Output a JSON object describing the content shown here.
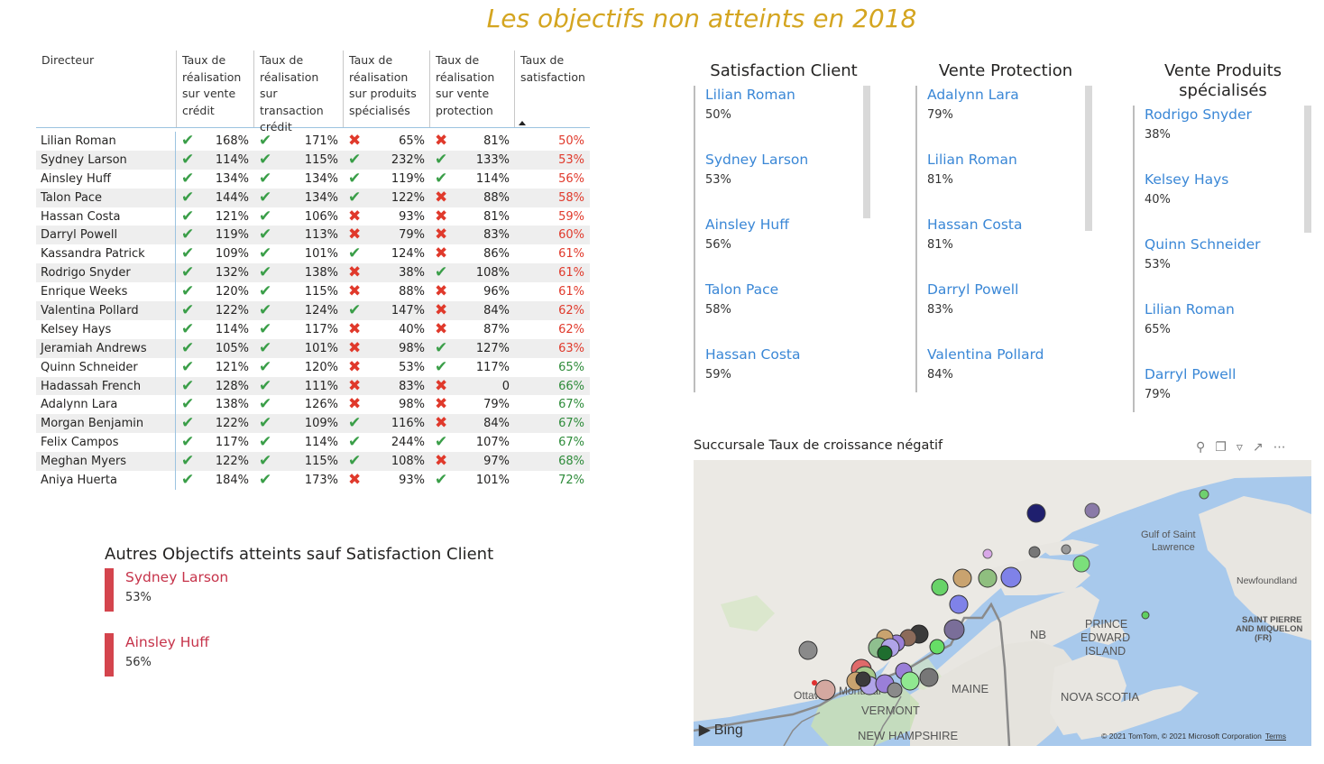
{
  "page": {
    "title": "Les objectifs non atteints en 2018"
  },
  "table": {
    "headers": {
      "directeur": "Directeur",
      "credit": "Taux de réalisation sur vente crédit",
      "transaction": "Taux de réalisation sur transaction crédit",
      "produits": "Taux de réalisation sur produits spécialisés",
      "protection": "Taux de réalisation sur vente protection",
      "satisfaction": "Taux de satisfaction"
    },
    "rows": [
      {
        "name": "Lilian Roman",
        "credit": "168%",
        "credit_ok": true,
        "trans": "171%",
        "trans_ok": true,
        "prod": "65%",
        "prod_ok": false,
        "prot": "81%",
        "prot_ok": false,
        "sat": "50%",
        "sat_color": "red"
      },
      {
        "name": "Sydney Larson",
        "credit": "114%",
        "credit_ok": true,
        "trans": "115%",
        "trans_ok": true,
        "prod": "232%",
        "prod_ok": true,
        "prot": "133%",
        "prot_ok": true,
        "sat": "53%",
        "sat_color": "red"
      },
      {
        "name": "Ainsley Huff",
        "credit": "134%",
        "credit_ok": true,
        "trans": "134%",
        "trans_ok": true,
        "prod": "119%",
        "prod_ok": true,
        "prot": "114%",
        "prot_ok": true,
        "sat": "56%",
        "sat_color": "red"
      },
      {
        "name": "Talon Pace",
        "credit": "144%",
        "credit_ok": true,
        "trans": "134%",
        "trans_ok": true,
        "prod": "122%",
        "prod_ok": true,
        "prot": "88%",
        "prot_ok": false,
        "sat": "58%",
        "sat_color": "red"
      },
      {
        "name": "Hassan Costa",
        "credit": "121%",
        "credit_ok": true,
        "trans": "106%",
        "trans_ok": true,
        "prod": "93%",
        "prod_ok": false,
        "prot": "81%",
        "prot_ok": false,
        "sat": "59%",
        "sat_color": "red"
      },
      {
        "name": "Darryl Powell",
        "credit": "119%",
        "credit_ok": true,
        "trans": "113%",
        "trans_ok": true,
        "prod": "79%",
        "prod_ok": false,
        "prot": "83%",
        "prot_ok": false,
        "sat": "60%",
        "sat_color": "red"
      },
      {
        "name": "Kassandra Patrick",
        "credit": "109%",
        "credit_ok": true,
        "trans": "101%",
        "trans_ok": true,
        "prod": "124%",
        "prod_ok": true,
        "prot": "86%",
        "prot_ok": false,
        "sat": "61%",
        "sat_color": "red"
      },
      {
        "name": "Rodrigo Snyder",
        "credit": "132%",
        "credit_ok": true,
        "trans": "138%",
        "trans_ok": true,
        "prod": "38%",
        "prod_ok": false,
        "prot": "108%",
        "prot_ok": true,
        "sat": "61%",
        "sat_color": "red"
      },
      {
        "name": "Enrique Weeks",
        "credit": "120%",
        "credit_ok": true,
        "trans": "115%",
        "trans_ok": true,
        "prod": "88%",
        "prod_ok": false,
        "prot": "96%",
        "prot_ok": false,
        "sat": "61%",
        "sat_color": "red"
      },
      {
        "name": "Valentina Pollard",
        "credit": "122%",
        "credit_ok": true,
        "trans": "124%",
        "trans_ok": true,
        "prod": "147%",
        "prod_ok": true,
        "prot": "84%",
        "prot_ok": false,
        "sat": "62%",
        "sat_color": "red"
      },
      {
        "name": "Kelsey Hays",
        "credit": "114%",
        "credit_ok": true,
        "trans": "117%",
        "trans_ok": true,
        "prod": "40%",
        "prod_ok": false,
        "prot": "87%",
        "prot_ok": false,
        "sat": "62%",
        "sat_color": "red"
      },
      {
        "name": "Jeramiah Andrews",
        "credit": "105%",
        "credit_ok": true,
        "trans": "101%",
        "trans_ok": true,
        "prod": "98%",
        "prod_ok": false,
        "prot": "127%",
        "prot_ok": true,
        "sat": "63%",
        "sat_color": "red"
      },
      {
        "name": "Quinn Schneider",
        "credit": "121%",
        "credit_ok": true,
        "trans": "120%",
        "trans_ok": true,
        "prod": "53%",
        "prod_ok": false,
        "prot": "117%",
        "prot_ok": true,
        "sat": "65%",
        "sat_color": "green"
      },
      {
        "name": "Hadassah French",
        "credit": "128%",
        "credit_ok": true,
        "trans": "111%",
        "trans_ok": true,
        "prod": "83%",
        "prod_ok": false,
        "prot": "0",
        "prot_ok": false,
        "sat": "66%",
        "sat_color": "green"
      },
      {
        "name": "Adalynn Lara",
        "credit": "138%",
        "credit_ok": true,
        "trans": "126%",
        "trans_ok": true,
        "prod": "98%",
        "prod_ok": false,
        "prot": "79%",
        "prot_ok": false,
        "sat": "67%",
        "sat_color": "green"
      },
      {
        "name": "Morgan Benjamin",
        "credit": "122%",
        "credit_ok": true,
        "trans": "109%",
        "trans_ok": true,
        "prod": "116%",
        "prod_ok": true,
        "prot": "84%",
        "prot_ok": false,
        "sat": "67%",
        "sat_color": "green"
      },
      {
        "name": "Felix Campos",
        "credit": "117%",
        "credit_ok": true,
        "trans": "114%",
        "trans_ok": true,
        "prod": "244%",
        "prod_ok": true,
        "prot": "107%",
        "prot_ok": true,
        "sat": "67%",
        "sat_color": "green"
      },
      {
        "name": "Meghan Myers",
        "credit": "122%",
        "credit_ok": true,
        "trans": "115%",
        "trans_ok": true,
        "prod": "108%",
        "prod_ok": true,
        "prot": "97%",
        "prot_ok": false,
        "sat": "68%",
        "sat_color": "green"
      },
      {
        "name": "Aniya Huerta",
        "credit": "184%",
        "credit_ok": true,
        "trans": "173%",
        "trans_ok": true,
        "prod": "93%",
        "prod_ok": false,
        "prot": "101%",
        "prot_ok": true,
        "sat": "72%",
        "sat_color": "green"
      }
    ]
  },
  "cards": {
    "satisfaction": {
      "title": "Satisfaction Client",
      "items": [
        {
          "name": "Lilian Roman",
          "value": "50%"
        },
        {
          "name": "Sydney Larson",
          "value": "53%"
        },
        {
          "name": "Ainsley Huff",
          "value": "56%"
        },
        {
          "name": "Talon Pace",
          "value": "58%"
        },
        {
          "name": "Hassan Costa",
          "value": "59%"
        }
      ]
    },
    "protection": {
      "title": "Vente Protection",
      "items": [
        {
          "name": "Adalynn Lara",
          "value": "79%"
        },
        {
          "name": "Lilian Roman",
          "value": "81%"
        },
        {
          "name": "Hassan Costa",
          "value": "81%"
        },
        {
          "name": "Darryl Powell",
          "value": "83%"
        },
        {
          "name": "Valentina Pollard",
          "value": "84%"
        }
      ]
    },
    "produits": {
      "title_line1": "Vente Produits",
      "title_line2": "spécialisés",
      "items": [
        {
          "name": "Rodrigo Snyder",
          "value": "38%"
        },
        {
          "name": "Kelsey Hays",
          "value": "40%"
        },
        {
          "name": "Quinn Schneider",
          "value": "53%"
        },
        {
          "name": "Lilian Roman",
          "value": "65%"
        },
        {
          "name": "Darryl Powell",
          "value": "79%"
        }
      ]
    }
  },
  "other": {
    "title": "Autres Objectifs atteints sauf Satisfaction Client",
    "items": [
      {
        "name": "Sydney Larson",
        "value": "53%"
      },
      {
        "name": "Ainsley Huff",
        "value": "56%"
      }
    ]
  },
  "map": {
    "title": "Succursale Taux de croissance négatif",
    "labels": {
      "gulf1": "Gulf of Saint",
      "gulf2": "Lawrence",
      "newfoundland": "Newfoundland",
      "pei1": "PRINCE",
      "pei2": "EDWARD",
      "pei3": "ISLAND",
      "nb": "NB",
      "spm1": "SAINT PIERRE",
      "spm2": "AND MIQUELON",
      "spm3": "(FR)",
      "maine": "MAINE",
      "vermont": "VERMONT",
      "nh": "NEW HAMPSHIRE",
      "novascotia": "NOVA SCOTIA",
      "ottawa": "Ottawa",
      "montreal": "Montréal"
    },
    "bing": "Bing",
    "copyright": "© 2021 TomTom, © 2021 Microsoft Corporation",
    "terms": "Terms"
  }
}
